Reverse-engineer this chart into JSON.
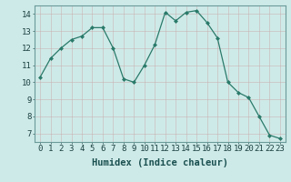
{
  "x": [
    0,
    1,
    2,
    3,
    4,
    5,
    6,
    7,
    8,
    9,
    10,
    11,
    12,
    13,
    14,
    15,
    16,
    17,
    18,
    19,
    20,
    21,
    22,
    23
  ],
  "y": [
    10.3,
    11.4,
    12.0,
    12.5,
    12.7,
    13.2,
    13.2,
    12.0,
    10.2,
    10.0,
    11.0,
    12.2,
    14.1,
    13.6,
    14.1,
    14.2,
    13.5,
    12.6,
    10.0,
    9.4,
    9.1,
    8.0,
    6.9,
    6.7
  ],
  "line_color": "#2a7a6a",
  "marker": "D",
  "marker_size": 2.0,
  "bg_color": "#ceeae8",
  "grid_major_color": "#b0c8c8",
  "grid_minor_color": "#d8ecec",
  "xlabel": "Humidex (Indice chaleur)",
  "xlabel_fontsize": 7.5,
  "tick_fontsize": 6.5,
  "xlim": [
    -0.5,
    23.5
  ],
  "ylim": [
    6.5,
    14.5
  ],
  "yticks": [
    7,
    8,
    9,
    10,
    11,
    12,
    13,
    14
  ],
  "xticks": [
    0,
    1,
    2,
    3,
    4,
    5,
    6,
    7,
    8,
    9,
    10,
    11,
    12,
    13,
    14,
    15,
    16,
    17,
    18,
    19,
    20,
    21,
    22,
    23
  ]
}
